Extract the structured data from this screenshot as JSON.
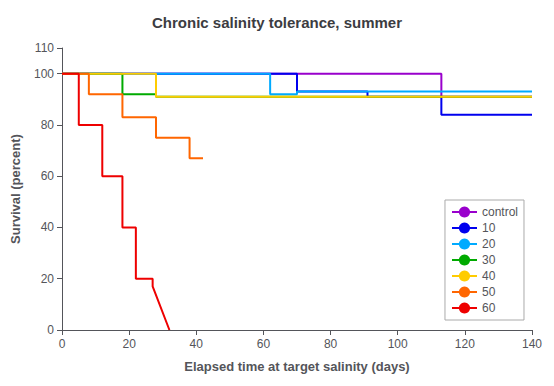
{
  "chart_data": {
    "type": "line",
    "title": "Chronic salinity tolerance, summer",
    "xlabel": "Elapsed time at target salinity (days)",
    "ylabel": "Survival (percent)",
    "xlim": [
      0,
      140
    ],
    "ylim": [
      0,
      110
    ],
    "xticks": [
      0,
      20,
      40,
      60,
      80,
      100,
      120,
      140
    ],
    "yticks": [
      0,
      20,
      40,
      60,
      80,
      100
    ],
    "grid": false,
    "legend": "lower right",
    "series": [
      {
        "name": "control",
        "color": "#9900CC",
        "x": [
          0,
          113,
          113,
          140
        ],
        "values": [
          100,
          100,
          91,
          91
        ]
      },
      {
        "name": "10",
        "color": "#0000EE",
        "x": [
          0,
          70,
          70,
          91,
          91,
          100,
          100,
          113,
          113,
          140
        ],
        "values": [
          100,
          100,
          93,
          93,
          91,
          91,
          91,
          91,
          84,
          84
        ]
      },
      {
        "name": "20",
        "color": "#00AAFF",
        "x": [
          0,
          62,
          62,
          70,
          70,
          140
        ],
        "values": [
          100,
          100,
          92,
          92,
          93,
          93
        ]
      },
      {
        "name": "30",
        "color": "#00AA00",
        "x": [
          0,
          18,
          18,
          28,
          28,
          140
        ],
        "values": [
          100,
          100,
          92,
          92,
          91,
          91
        ]
      },
      {
        "name": "40",
        "color": "#FFCC00",
        "x": [
          0,
          28,
          28,
          140
        ],
        "values": [
          100,
          100,
          91,
          91
        ]
      },
      {
        "name": "50",
        "color": "#FF6600",
        "x": [
          0,
          8,
          8,
          18,
          18,
          28,
          28,
          38,
          38,
          42
        ],
        "values": [
          100,
          100,
          92,
          92,
          83,
          83,
          75,
          75,
          67,
          67
        ]
      },
      {
        "name": "60",
        "color": "#EE0000",
        "x": [
          0,
          5,
          5,
          12,
          12,
          18,
          18,
          22,
          22,
          27,
          27,
          32
        ],
        "values": [
          100,
          100,
          80,
          80,
          60,
          60,
          40,
          40,
          20,
          20,
          17,
          0
        ]
      }
    ]
  }
}
